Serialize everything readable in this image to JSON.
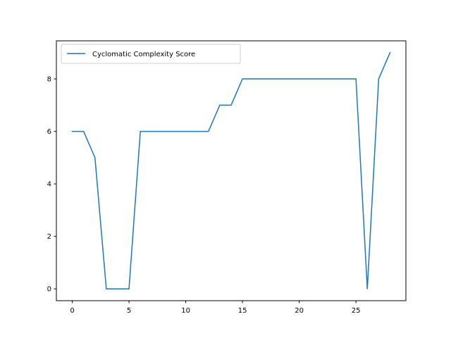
{
  "chart_data": {
    "type": "line",
    "title": "",
    "xlabel": "",
    "ylabel": "",
    "xlim": [
      -1.4,
      29.4
    ],
    "ylim": [
      -0.45,
      9.45
    ],
    "xticks": [
      0,
      5,
      10,
      15,
      20,
      25
    ],
    "yticks": [
      0,
      2,
      4,
      6,
      8
    ],
    "grid": false,
    "legend_position": "upper-left",
    "series": [
      {
        "name": "Cyclomatic Complexity Score",
        "color": "#1f77b4",
        "x": [
          0,
          1,
          2,
          3,
          4,
          5,
          6,
          7,
          8,
          9,
          10,
          11,
          12,
          13,
          14,
          15,
          16,
          17,
          18,
          19,
          20,
          21,
          22,
          23,
          24,
          25,
          26,
          27,
          28
        ],
        "values": [
          6,
          6,
          5,
          0,
          0,
          0,
          6,
          6,
          6,
          6,
          6,
          6,
          6,
          7,
          7,
          8,
          8,
          8,
          8,
          8,
          8,
          8,
          8,
          8,
          8,
          8,
          0,
          8,
          9
        ]
      }
    ]
  }
}
